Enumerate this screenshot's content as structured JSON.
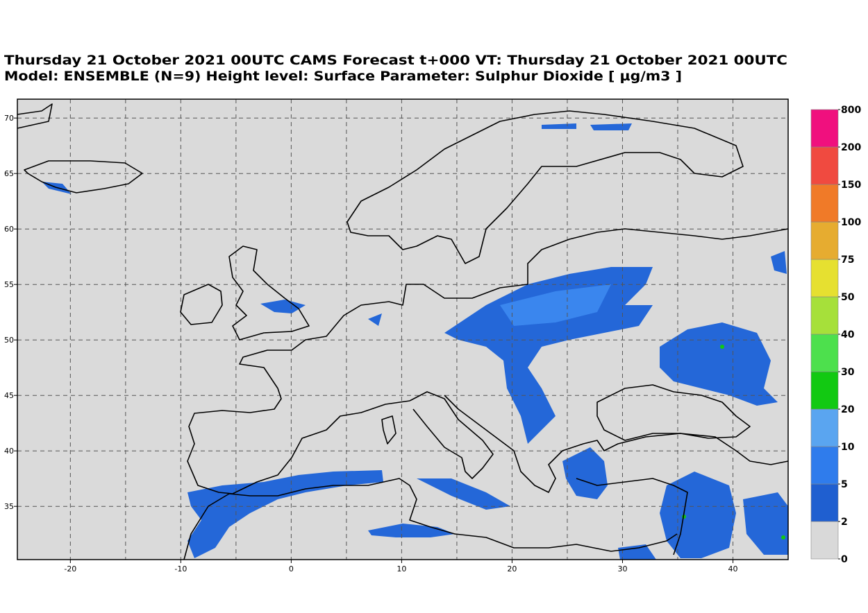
{
  "title": {
    "line1": "Thursday 21 October 2021 00UTC CAMS Forecast t+000 VT: Thursday 21 October 2021 00UTC",
    "line2": "Model: ENSEMBLE (N=9) Height level: Surface  Parameter: Sulphur Dioxide [ µg/m3 ]"
  },
  "map": {
    "lon_range": [
      -24.8,
      45
    ],
    "lat_range": [
      30.2,
      71.7
    ],
    "grid_step": 5,
    "lon_ticks": [
      -20,
      -10,
      0,
      10,
      20,
      30,
      40
    ],
    "lat_ticks": [
      35,
      40,
      45,
      50,
      55,
      60,
      65,
      70
    ]
  },
  "colorbar": {
    "levels": [
      0,
      2,
      5,
      10,
      20,
      30,
      40,
      50,
      75,
      100,
      150,
      200,
      800
    ],
    "colors": [
      "#d9d9d9",
      "#1f5fd0",
      "#2f7cec",
      "#5aa5f0",
      "#12c912",
      "#4de04d",
      "#a6e03a",
      "#e6e030",
      "#e6ac30",
      "#f07a28",
      "#f04a40",
      "#f0107e"
    ]
  }
}
